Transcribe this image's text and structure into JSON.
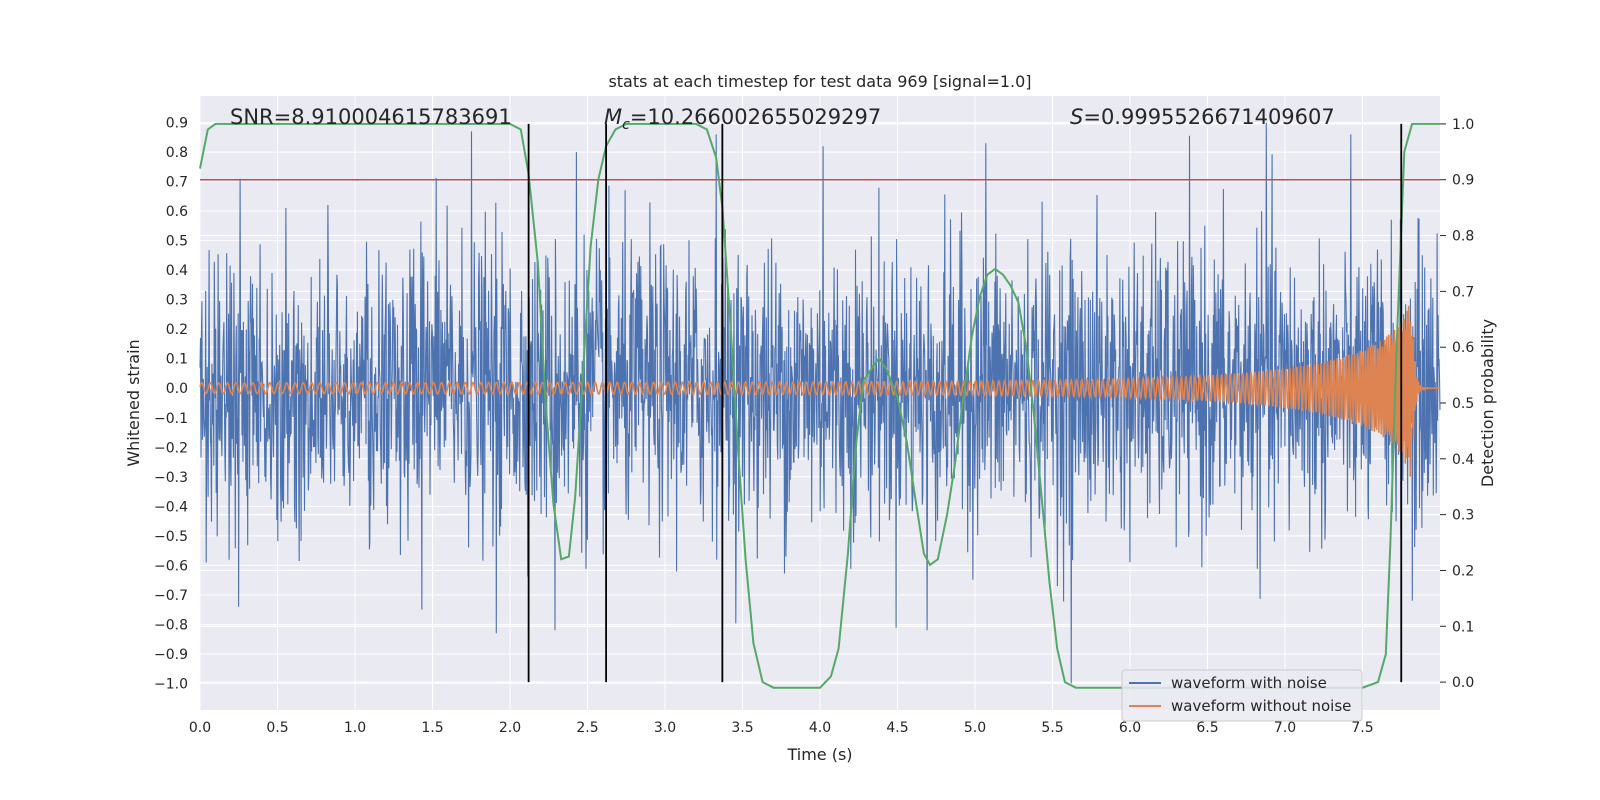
{
  "chart_data": {
    "type": "line",
    "title": "stats at each timestep for test data 969 [signal=1.0]",
    "xlabel": "Time (s)",
    "ylabel_left": "Whitened strain",
    "ylabel_right": "Detection probability",
    "xlim": [
      0.0,
      8.0
    ],
    "ylim_left": [
      -1.09,
      0.99
    ],
    "ylim_right": [
      -0.05,
      1.05
    ],
    "grid": true,
    "x_ticks": [
      0.0,
      0.5,
      1.0,
      1.5,
      2.0,
      2.5,
      3.0,
      3.5,
      4.0,
      4.5,
      5.0,
      5.5,
      6.0,
      6.5,
      7.0,
      7.5
    ],
    "x_tick_labels": [
      "0.0",
      "0.5",
      "1.0",
      "1.5",
      "2.0",
      "2.5",
      "3.0",
      "3.5",
      "4.0",
      "4.5",
      "5.0",
      "5.5",
      "6.0",
      "6.5",
      "7.0",
      "7.5"
    ],
    "y_left_ticks": [
      0.9,
      0.8,
      0.7,
      0.6,
      0.5,
      0.4,
      0.3,
      0.2,
      0.1,
      0.0,
      -0.1,
      -0.2,
      -0.3,
      -0.4,
      -0.5,
      -0.6,
      -0.7,
      -0.8,
      -0.9,
      -1.0
    ],
    "y_left_tick_labels": [
      "0.9",
      "0.8",
      "0.7",
      "0.6",
      "0.5",
      "0.4",
      "0.3",
      "0.2",
      "0.1",
      "0.0",
      "−0.1",
      "−0.2",
      "−0.3",
      "−0.4",
      "−0.5",
      "−0.6",
      "−0.7",
      "−0.8",
      "−0.9",
      "−1.0"
    ],
    "y_right_ticks": [
      1.0,
      0.9,
      0.8,
      0.7,
      0.6,
      0.5,
      0.4,
      0.3,
      0.2,
      0.1,
      0.0
    ],
    "y_right_tick_labels": [
      "1.0",
      "0.9",
      "0.8",
      "0.7",
      "0.6",
      "0.5",
      "0.4",
      "0.3",
      "0.2",
      "0.1",
      "0.0"
    ],
    "annotations": {
      "snr": "SNR=8.910004615783691",
      "mc_symbol": "M",
      "mc_sub": "c",
      "mc_value": "=10.266002655029297",
      "s_symbol": "S",
      "s_value": "=0.9995526671409607"
    },
    "threshold_right": 0.9,
    "threshold_color": "#c44e52",
    "vertical_lines_x": [
      2.12,
      2.62,
      3.37,
      7.75
    ],
    "legend_location": "lower right",
    "series": [
      {
        "name": "waveform with noise",
        "color": "#4c72b0",
        "axis": "left",
        "noise_std": 0.24,
        "x_range": [
          0.0,
          8.0
        ],
        "notable_peaks": [
          {
            "x": 0.26,
            "y": 0.71
          },
          {
            "x": 0.25,
            "y": -0.74
          },
          {
            "x": 1.75,
            "y": 0.87
          },
          {
            "x": 1.43,
            "y": -0.75
          },
          {
            "x": 1.91,
            "y": -0.83
          },
          {
            "x": 2.29,
            "y": -0.82
          },
          {
            "x": 2.43,
            "y": 0.8
          },
          {
            "x": 3.33,
            "y": 0.86
          },
          {
            "x": 4.02,
            "y": 0.82
          },
          {
            "x": 4.69,
            "y": -0.82
          },
          {
            "x": 5.07,
            "y": 0.83
          },
          {
            "x": 5.62,
            "y": -1.0
          },
          {
            "x": 6.88,
            "y": 0.9
          },
          {
            "x": 7.82,
            "y": -0.72
          }
        ]
      },
      {
        "name": "waveform without noise",
        "color": "#dd8452",
        "axis": "left",
        "chirp": {
          "t_merge": 7.82,
          "f0_hz": 18,
          "amp_start": 0.018,
          "amp_merge": 0.3,
          "amp_after": 0.0
        }
      },
      {
        "name": "",
        "color": "#55a868",
        "axis": "right",
        "x": [
          0.0,
          0.05,
          0.1,
          0.2,
          0.3,
          0.5,
          0.8,
          1.2,
          1.6,
          1.9,
          2.0,
          2.07,
          2.12,
          2.18,
          2.23,
          2.28,
          2.33,
          2.38,
          2.42,
          2.47,
          2.52,
          2.57,
          2.62,
          2.68,
          2.75,
          2.82,
          2.9,
          3.0,
          3.1,
          3.2,
          3.27,
          3.33,
          3.37,
          3.42,
          3.47,
          3.52,
          3.57,
          3.63,
          3.7,
          3.8,
          3.9,
          4.0,
          4.07,
          4.12,
          4.18,
          4.23,
          4.28,
          4.33,
          4.38,
          4.43,
          4.5,
          4.56,
          4.62,
          4.67,
          4.71,
          4.76,
          4.82,
          4.87,
          4.92,
          4.98,
          5.03,
          5.08,
          5.13,
          5.18,
          5.23,
          5.28,
          5.33,
          5.38,
          5.43,
          5.48,
          5.53,
          5.58,
          5.65,
          5.8,
          6.0,
          6.5,
          7.0,
          7.3,
          7.5,
          7.6,
          7.65,
          7.68,
          7.72,
          7.77,
          7.82,
          7.88,
          7.94,
          8.0
        ],
        "values": [
          0.92,
          0.99,
          1.0,
          1.0,
          1.0,
          1.0,
          1.0,
          1.0,
          1.0,
          1.0,
          1.0,
          0.99,
          0.91,
          0.75,
          0.5,
          0.32,
          0.22,
          0.225,
          0.33,
          0.55,
          0.78,
          0.9,
          0.96,
          0.99,
          1.0,
          1.0,
          1.0,
          1.0,
          1.0,
          1.0,
          0.99,
          0.94,
          0.85,
          0.65,
          0.42,
          0.22,
          0.07,
          0.0,
          -0.01,
          -0.01,
          -0.01,
          -0.01,
          0.01,
          0.06,
          0.23,
          0.42,
          0.54,
          0.56,
          0.58,
          0.56,
          0.51,
          0.43,
          0.32,
          0.23,
          0.21,
          0.22,
          0.3,
          0.39,
          0.5,
          0.62,
          0.69,
          0.73,
          0.74,
          0.73,
          0.71,
          0.68,
          0.6,
          0.48,
          0.33,
          0.18,
          0.06,
          0.0,
          -0.01,
          -0.01,
          -0.01,
          -0.01,
          -0.01,
          -0.01,
          -0.01,
          0.0,
          0.05,
          0.25,
          0.6,
          0.95,
          1.0,
          1.0,
          1.0,
          1.0
        ]
      }
    ]
  }
}
